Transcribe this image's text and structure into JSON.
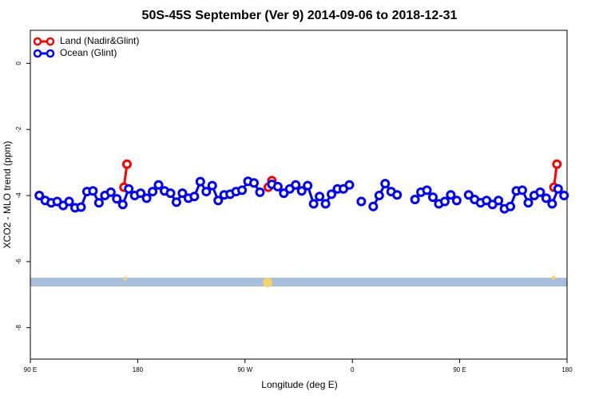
{
  "chart_data": {
    "type": "line",
    "title": "50S-45S September (Ver 9)   2014-09-06 to 2018-12-31",
    "x_label": "Longitude (deg E)",
    "y_label": "XCO2 - MLO trend (ppm)",
    "xlim": [
      90,
      540
    ],
    "xticks": [
      {
        "value": 90,
        "label": "90 E"
      },
      {
        "value": 180,
        "label": "180"
      },
      {
        "value": 270,
        "label": "90 W"
      },
      {
        "value": 360,
        "label": "0"
      },
      {
        "value": 450,
        "label": "90 E"
      },
      {
        "value": 540,
        "label": "180"
      }
    ],
    "ylim": [
      -8.95,
      1.0
    ],
    "yticks": [
      0,
      -2,
      -4,
      -6,
      -8
    ],
    "legend": "top-left",
    "series": [
      {
        "name": "Land (Nadir&Glint)",
        "color": "#ff0000",
        "x": [
          168.5,
          171,
          null,
          289.5,
          292.5,
          null,
          529,
          531.5
        ],
        "values": [
          -3.75,
          -3.05,
          null,
          -3.75,
          -3.55,
          null,
          -3.75,
          -3.05
        ]
      },
      {
        "name": "Ocean (Glint)",
        "color": "#0000ff",
        "x": [
          97.5,
          102.5,
          107.5,
          112.5,
          117.5,
          122.5,
          127.5,
          132.5,
          137.5,
          142.5,
          147.5,
          152.5,
          157.5,
          162.5,
          167.5,
          172.5,
          177.5,
          182.5,
          187.5,
          192.5,
          197.5,
          202.5,
          207.5,
          212.5,
          217.5,
          222.5,
          227.5,
          232.5,
          237.5,
          242.5,
          247.5,
          252.5,
          257.5,
          262.5,
          267.5,
          272.5,
          277.5,
          282.5,
          287.5,
          292.5,
          297.5,
          302.5,
          307.5,
          312.5,
          317.5,
          322.5,
          327.5,
          332.5,
          337.5,
          342.5,
          347.5,
          352.5,
          357.5,
          362.5,
          367.5,
          372.5,
          377.5,
          382.5,
          387.5,
          392.5,
          397.5,
          402.5,
          407.5,
          412.5,
          417.5,
          422.5,
          427.5,
          432.5,
          437.5,
          442.5,
          447.5,
          452.5,
          457.5,
          462.5,
          467.5,
          472.5,
          477.5,
          482.5,
          487.5,
          492.5,
          497.5,
          502.5,
          507.5,
          512.5,
          517.5,
          522.5,
          527.5,
          532.5,
          537.5
        ],
        "values": [
          -4.0,
          -4.15,
          -4.22,
          -4.18,
          -4.3,
          -4.18,
          -4.37,
          -4.35,
          -3.88,
          -3.86,
          -4.22,
          -4.0,
          -3.9,
          -4.1,
          -4.27,
          -3.8,
          -4.0,
          -3.93,
          -4.08,
          -3.88,
          -3.68,
          -3.86,
          -3.93,
          -4.2,
          -3.93,
          -4.08,
          -4.03,
          -3.58,
          -3.88,
          -3.7,
          -4.15,
          -3.98,
          -3.96,
          -3.88,
          -3.84,
          -3.57,
          -3.62,
          -3.9,
          null,
          -3.66,
          -3.73,
          -3.93,
          -3.8,
          -3.68,
          -3.86,
          -3.7,
          -4.25,
          -4.03,
          -4.25,
          -3.96,
          -3.8,
          -3.8,
          -3.68,
          null,
          -4.18,
          null,
          -4.33,
          -4.0,
          -3.64,
          -3.88,
          -3.98,
          null,
          null,
          -4.12,
          -3.9,
          -3.84,
          -4.05,
          -4.25,
          -4.18,
          -3.98,
          -4.15,
          null,
          -3.98,
          -4.12,
          -4.22,
          -4.15,
          -4.27,
          -4.15,
          -4.4,
          -4.33,
          -3.86,
          -3.84,
          -4.22,
          -4.0,
          -3.9,
          -4.08,
          -4.25,
          -3.8,
          -4.0
        ]
      }
    ]
  }
}
